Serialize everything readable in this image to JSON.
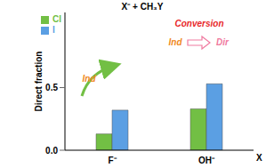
{
  "chart_data": {
    "type": "bar",
    "title": "X⁻ + CH₃Y",
    "x_label": "X",
    "y_label": "Direct fraction",
    "categories": [
      "F⁻",
      "OH⁻"
    ],
    "series": [
      {
        "name": "Cl",
        "color": "#72bf44",
        "values": [
          0.13,
          0.33
        ]
      },
      {
        "name": "I",
        "color": "#5b9fe3",
        "values": [
          0.32,
          0.53
        ]
      }
    ],
    "ylim": [
      0,
      1.1
    ],
    "yticks": [
      {
        "value": 0,
        "label": "0.0"
      },
      0.5
    ],
    "legend": "upper left",
    "annotations": [
      {
        "text": "Ind",
        "color": "#f08a24"
      },
      {
        "text": "Conversion",
        "color": "#e8282a"
      },
      {
        "text": "Ind",
        "color": "#f08a24"
      },
      {
        "text": "Dir",
        "color": "#f07aa0"
      }
    ]
  }
}
